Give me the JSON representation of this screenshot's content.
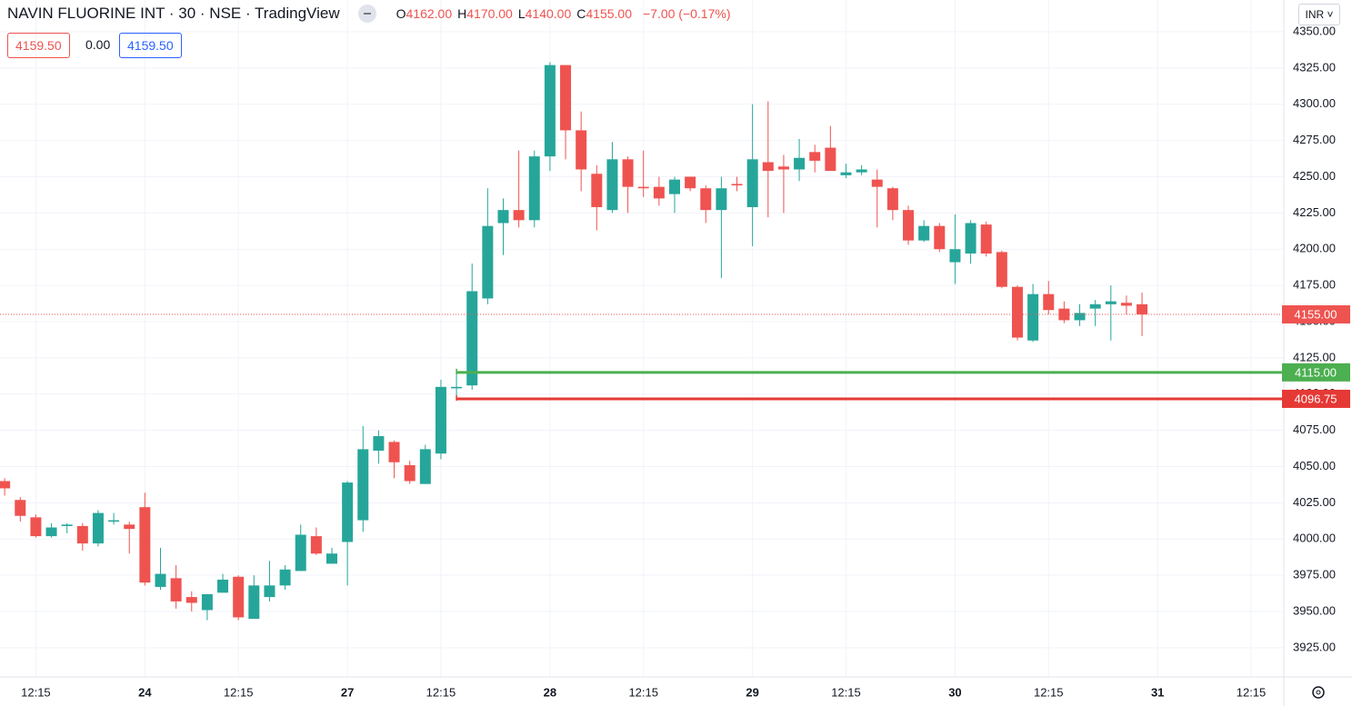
{
  "header": {
    "title": "NAVIN FLUORINE INT · 30 · NSE · TradingView",
    "ohlc": [
      {
        "label": "O",
        "value": "4162.00"
      },
      {
        "label": "H",
        "value": "4170.00"
      },
      {
        "label": "L",
        "value": "4140.00"
      },
      {
        "label": "C",
        "value": "4155.00"
      }
    ],
    "change": "−7.00 (−0.17%)",
    "sell": "4159.50",
    "spread": "0.00",
    "buy": "4159.50",
    "currency": "INR"
  },
  "chart_data": {
    "type": "candlestick",
    "up_color": "#26a69a",
    "down_color": "#ef5350",
    "open": [
      4040,
      4027,
      4015,
      4002,
      4009,
      4009,
      3997,
      4012,
      4010,
      4022,
      3967,
      3973,
      3960,
      3951,
      3963,
      3974,
      3945,
      3960,
      3968,
      3978,
      4002,
      3983,
      3998,
      4013,
      4061,
      4067,
      4051,
      4038,
      4059,
      4104,
      4106,
      4166,
      4218,
      4227,
      4220,
      4264,
      4327,
      4282,
      4252,
      4227,
      4262,
      4243,
      4243,
      4238,
      4250,
      4242,
      4227,
      4245,
      4229,
      4260,
      4257,
      4255,
      4267,
      4270,
      4251,
      4253,
      4248,
      4242,
      4227,
      4206,
      4216,
      4191,
      4197,
      4217,
      4198,
      4174,
      4137,
      4169,
      4159,
      4151,
      4159,
      4162,
      4163,
      4162
    ],
    "high": [
      4042,
      4029,
      4017,
      4011,
      4011,
      4011,
      4020,
      4018,
      4012,
      4032,
      3994,
      3982,
      3964,
      3962,
      3976,
      3975,
      3975,
      3985,
      3982,
      4010,
      4008,
      3994,
      4040,
      4078,
      4075,
      4068,
      4054,
      4065,
      4110,
      4117,
      4190,
      4242,
      4235,
      4268,
      4268,
      4329,
      4327,
      4295,
      4258,
      4274,
      4264,
      4268,
      4250,
      4250,
      4250,
      4244,
      4250,
      4250,
      4300,
      4302,
      4265,
      4276,
      4272,
      4285,
      4259,
      4258,
      4255,
      4243,
      4230,
      4220,
      4218,
      4224,
      4220,
      4219,
      4199,
      4175,
      4176,
      4178,
      4164,
      4162,
      4165,
      4175,
      4168,
      4170
    ],
    "low": [
      4030,
      4012,
      4001,
      4001,
      4004,
      3992,
      3995,
      4010,
      3990,
      3968,
      3965,
      3952,
      3950,
      3944,
      3963,
      3944,
      3945,
      3957,
      3965,
      3978,
      3989,
      3983,
      3968,
      4005,
      4052,
      4042,
      4038,
      4038,
      4055,
      4098,
      4103,
      4162,
      4196,
      4215,
      4215,
      4254,
      4262,
      4240,
      4213,
      4225,
      4225,
      4236,
      4230,
      4225,
      4240,
      4218,
      4180,
      4240,
      4202,
      4222,
      4225,
      4247,
      4253,
      4254,
      4249,
      4251,
      4215,
      4220,
      4203,
      4205,
      4198,
      4176,
      4190,
      4195,
      4173,
      4137,
      4136,
      4155,
      4149,
      4147,
      4147,
      4137,
      4155,
      4140
    ],
    "close": [
      4035,
      4016,
      4002,
      4008,
      4010,
      3997,
      4018,
      4013,
      4007,
      3970,
      3976,
      3957,
      3956,
      3962,
      3972,
      3946,
      3968,
      3968,
      3979,
      4003,
      3990,
      3990,
      4039,
      4062,
      4071,
      4053,
      4040,
      4062,
      4105,
      4105,
      4171,
      4216,
      4227,
      4220,
      4264,
      4327,
      4282,
      4255,
      4229,
      4262,
      4243,
      4242,
      4235,
      4248,
      4242,
      4227,
      4242,
      4244,
      4262,
      4254,
      4255,
      4263,
      4261,
      4254,
      4253,
      4255,
      4243,
      4227,
      4206,
      4216,
      4200,
      4200,
      4218,
      4197,
      4174,
      4139,
      4169,
      4158,
      4151,
      4156,
      4162,
      4164,
      4161,
      4155
    ],
    "xlim": [
      -0.3,
      82.1
    ],
    "xticks": [
      {
        "value": 2,
        "label": "12:15"
      },
      {
        "value": 9,
        "label": "24"
      },
      {
        "value": 15,
        "label": "12:15"
      },
      {
        "value": 22,
        "label": "27"
      },
      {
        "value": 28,
        "label": "12:15"
      },
      {
        "value": 35,
        "label": "28"
      },
      {
        "value": 41,
        "label": "12:15"
      },
      {
        "value": 48,
        "label": "29"
      },
      {
        "value": 54,
        "label": "12:15"
      },
      {
        "value": 61,
        "label": "30"
      },
      {
        "value": 67,
        "label": "12:15"
      },
      {
        "value": 74,
        "label": "31"
      },
      {
        "value": 80,
        "label": "12:15"
      }
    ],
    "ylim": [
      3904.9,
      4371.9
    ],
    "yticks": [
      {
        "value": 3925,
        "label": "3925.00"
      },
      {
        "value": 3950,
        "label": "3950.00"
      },
      {
        "value": 3975,
        "label": "3975.00"
      },
      {
        "value": 4000,
        "label": "4000.00"
      },
      {
        "value": 4025,
        "label": "4025.00"
      },
      {
        "value": 4050,
        "label": "4050.00"
      },
      {
        "value": 4075,
        "label": "4075.00"
      },
      {
        "value": 4100,
        "label": "4100.00"
      },
      {
        "value": 4125,
        "label": "4125.00"
      },
      {
        "value": 4150,
        "label": "4150.00"
      },
      {
        "value": 4175,
        "label": "4175.00"
      },
      {
        "value": 4200,
        "label": "4200.00"
      },
      {
        "value": 4225,
        "label": "4225.00"
      },
      {
        "value": 4250,
        "label": "4250.00"
      },
      {
        "value": 4275,
        "label": "4275.00"
      },
      {
        "value": 4300,
        "label": "4300.00"
      },
      {
        "value": 4325,
        "label": "4325.00"
      },
      {
        "value": 4350,
        "label": "4350.00"
      }
    ],
    "grid": true,
    "price_lines": [
      {
        "value": 4155,
        "label": "4155.00",
        "color": "#ef5350",
        "style": "dotted"
      },
      {
        "value": 4115,
        "label": "4115.00",
        "color": "#4caf50",
        "style": "solid",
        "x0": 29
      },
      {
        "value": 4096.75,
        "label": "4096.75",
        "color": "#e53935",
        "style": "solid",
        "x0": 29
      }
    ]
  }
}
